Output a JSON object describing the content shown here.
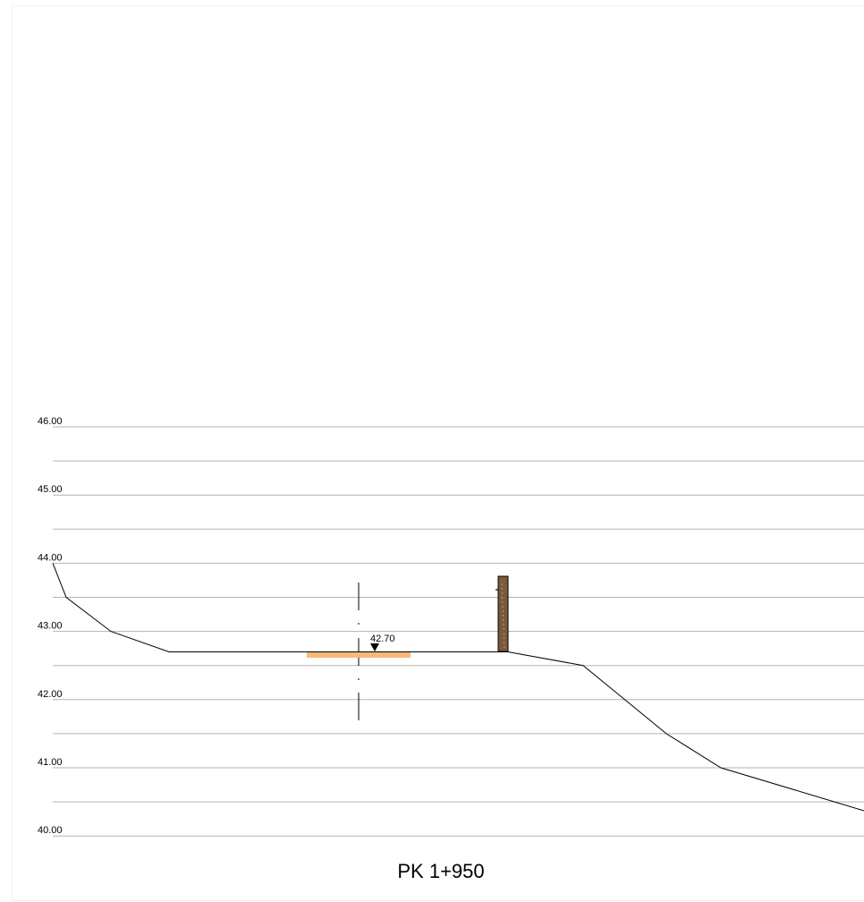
{
  "elevation_axis": {
    "labels": [
      "46.00",
      "45.00",
      "44.00",
      "43.00",
      "42.00",
      "41.00",
      "40.00"
    ],
    "label_values": [
      46,
      45,
      44,
      43,
      42,
      41,
      40
    ],
    "minor_values": [
      45.5,
      44.5,
      43.5,
      42.5,
      41.5,
      40.5
    ],
    "line_color": "#b3b3b3"
  },
  "terrain_profile": {
    "color": "#000000",
    "elevations": [
      44.0,
      43.5,
      43.0,
      42.7,
      42.7,
      42.7,
      42.5,
      41.5,
      41.0,
      40.37
    ]
  },
  "road_marker": {
    "label": "42.70",
    "elevation": 42.7,
    "color": "#f9b97a"
  },
  "post": {
    "color": "#7b5a3a"
  },
  "section_title": "PK  1+950"
}
